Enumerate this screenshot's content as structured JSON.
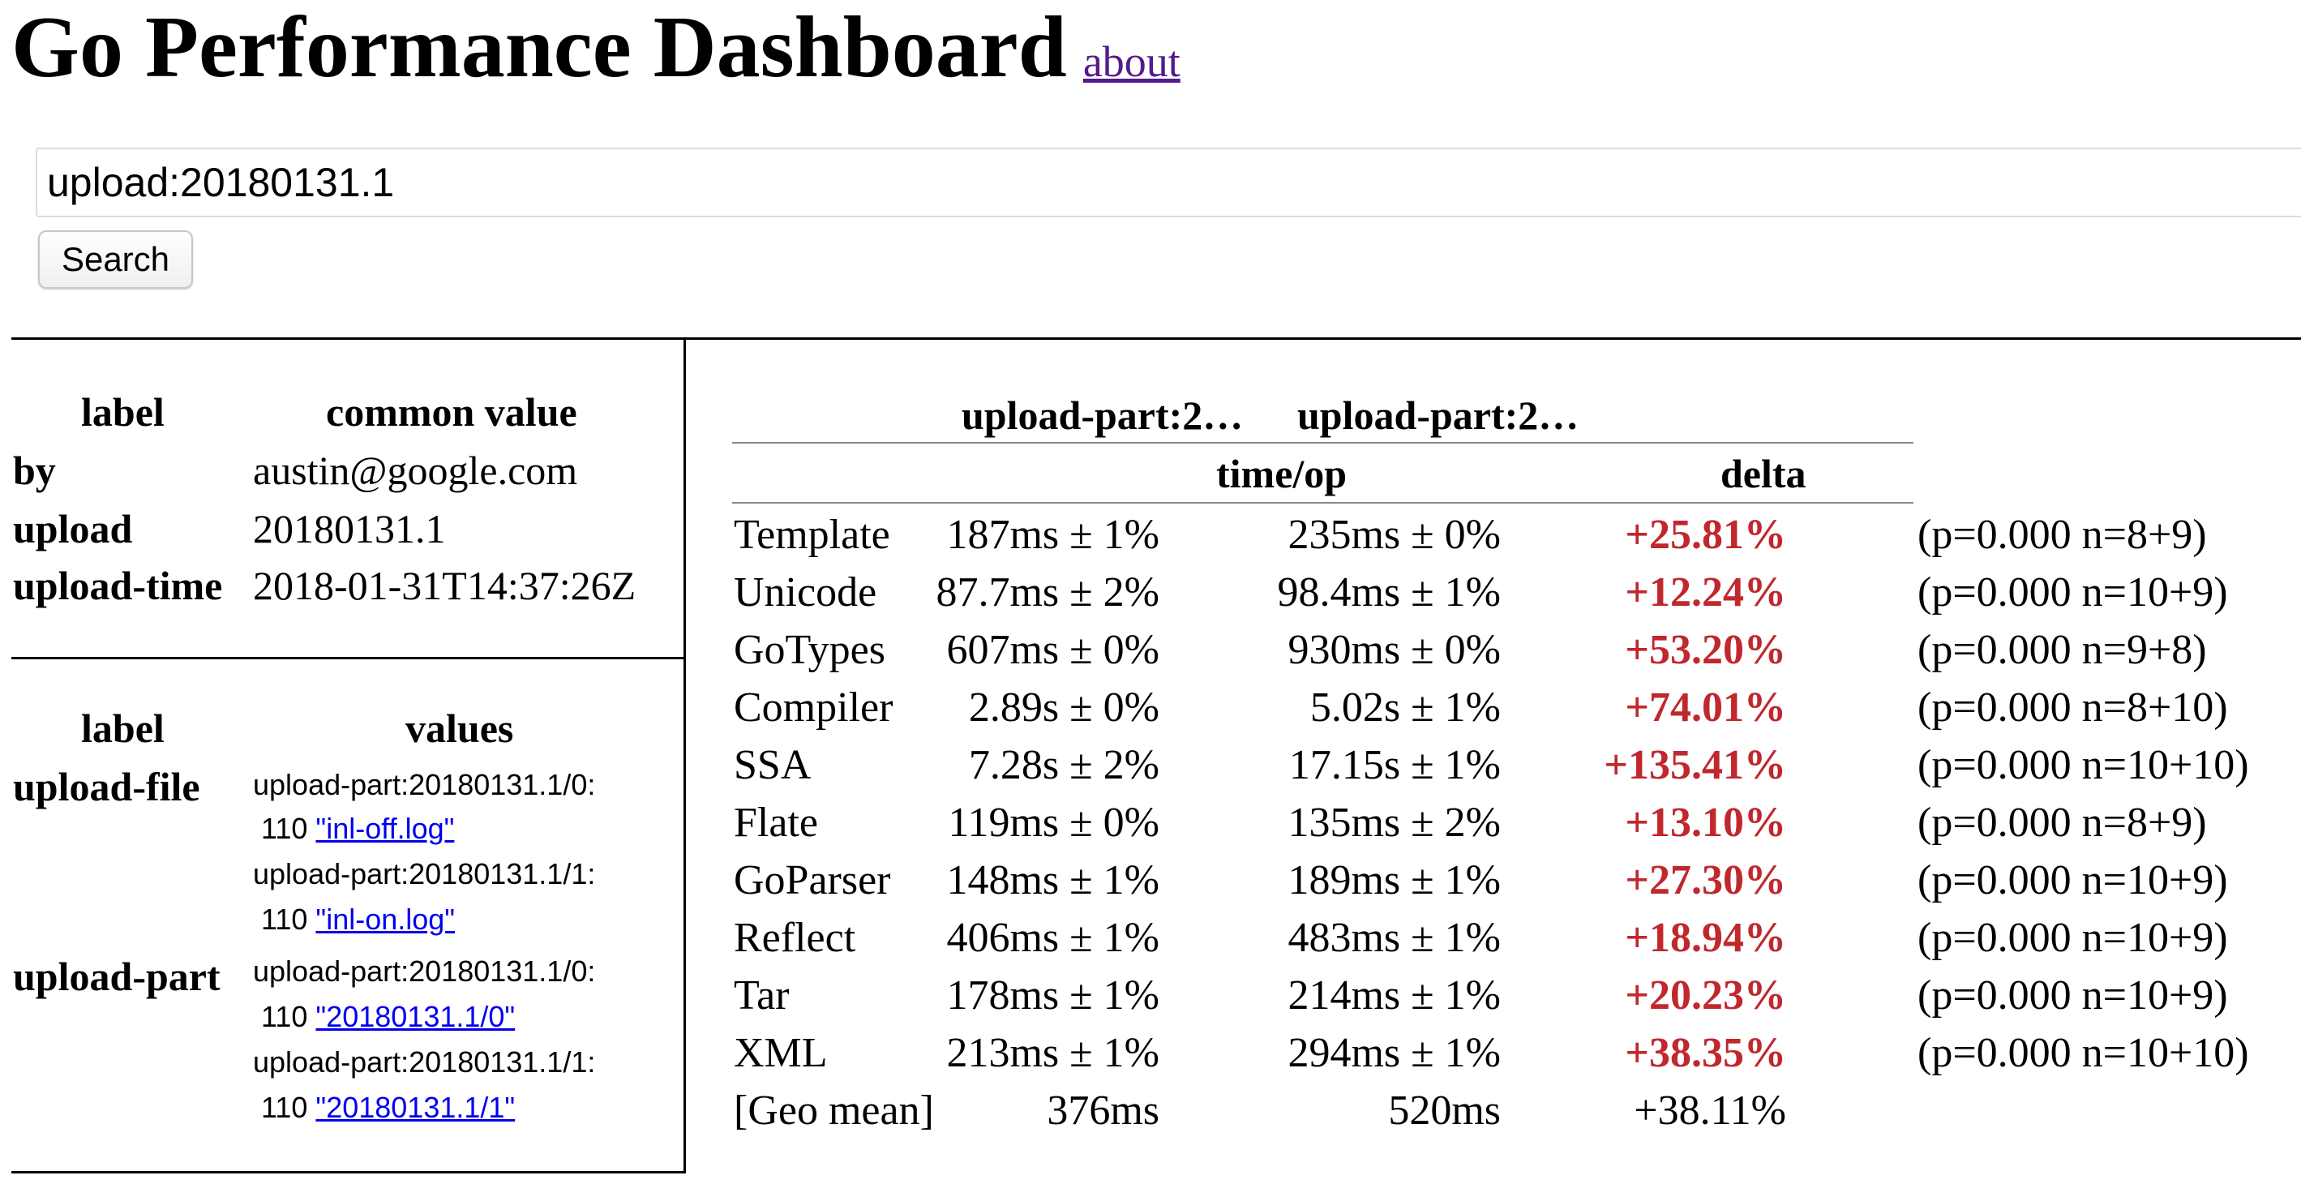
{
  "header": {
    "title": "Go Performance Dashboard",
    "about_link": "about"
  },
  "search": {
    "query": "upload:20180131.1",
    "button_label": "Search"
  },
  "common": {
    "headers": {
      "label": "label",
      "value": "common value"
    },
    "rows": [
      {
        "label": "by",
        "value": "austin@google.com"
      },
      {
        "label": "upload",
        "value": "20180131.1"
      },
      {
        "label": "upload-time",
        "value": "2018-01-31T14:37:26Z"
      }
    ]
  },
  "values_table": {
    "headers": {
      "label": "label",
      "values": "values"
    },
    "groups": [
      {
        "label": "upload-file",
        "entries": [
          {
            "key": "upload-part:20180131.1/0:",
            "count": "110",
            "link": "\"inl-off.log\""
          },
          {
            "key": "upload-part:20180131.1/1:",
            "count": "110",
            "link": "\"inl-on.log\""
          }
        ]
      },
      {
        "label": "upload-part",
        "entries": [
          {
            "key": "upload-part:20180131.1/0:",
            "count": "110",
            "link": "\"20180131.1/0\""
          },
          {
            "key": "upload-part:20180131.1/1:",
            "count": "110",
            "link": "\"20180131.1/1\""
          }
        ]
      }
    ]
  },
  "benchstat": {
    "columns": [
      "upload-part:2…",
      "upload-part:2…"
    ],
    "metric": "time/op",
    "delta_label": "delta",
    "colors": {
      "delta_significant": "#c0282d"
    },
    "rows": [
      {
        "name": "Template",
        "old": "187ms ± 1%",
        "new": "235ms ± 0%",
        "delta": "+25.81%",
        "note": "(p=0.000 n=8+9)"
      },
      {
        "name": "Unicode",
        "old": "87.7ms ± 2%",
        "new": "98.4ms ± 1%",
        "delta": "+12.24%",
        "note": "(p=0.000 n=10+9)"
      },
      {
        "name": "GoTypes",
        "old": "607ms ± 0%",
        "new": "930ms ± 0%",
        "delta": "+53.20%",
        "note": "(p=0.000 n=9+8)"
      },
      {
        "name": "Compiler",
        "old": "2.89s ± 0%",
        "new": "5.02s ± 1%",
        "delta": "+74.01%",
        "note": "(p=0.000 n=8+10)"
      },
      {
        "name": "SSA",
        "old": "7.28s ± 2%",
        "new": "17.15s ± 1%",
        "delta": "+135.41%",
        "note": "(p=0.000 n=10+10)"
      },
      {
        "name": "Flate",
        "old": "119ms ± 0%",
        "new": "135ms ± 2%",
        "delta": "+13.10%",
        "note": "(p=0.000 n=8+9)"
      },
      {
        "name": "GoParser",
        "old": "148ms ± 1%",
        "new": "189ms ± 1%",
        "delta": "+27.30%",
        "note": "(p=0.000 n=10+9)"
      },
      {
        "name": "Reflect",
        "old": "406ms ± 1%",
        "new": "483ms ± 1%",
        "delta": "+18.94%",
        "note": "(p=0.000 n=10+9)"
      },
      {
        "name": "Tar",
        "old": "178ms ± 1%",
        "new": "214ms ± 1%",
        "delta": "+20.23%",
        "note": "(p=0.000 n=10+9)"
      },
      {
        "name": "XML",
        "old": "213ms ± 1%",
        "new": "294ms ± 1%",
        "delta": "+38.35%",
        "note": "(p=0.000 n=10+10)"
      }
    ],
    "geomean": {
      "name": "[Geo mean]",
      "old": "376ms",
      "new": "520ms",
      "delta": "+38.11%"
    }
  }
}
